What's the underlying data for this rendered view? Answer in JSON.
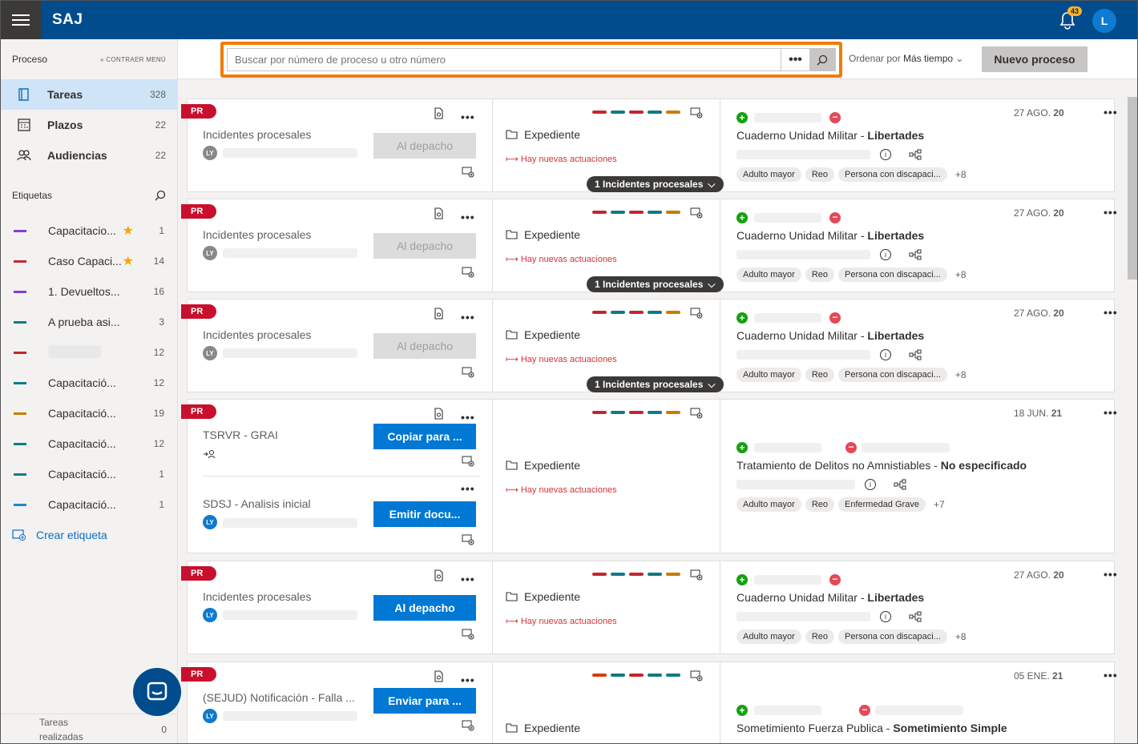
{
  "app": {
    "name": "SAJ",
    "notifications": "43",
    "user_initial": "L"
  },
  "icons": {
    "menu": "hamburger-icon",
    "bell": "bell-icon",
    "search": "search-icon",
    "star": "star-icon",
    "doc": "document-icon",
    "folder": "folder-icon",
    "add_label": "add-label-icon",
    "flow": "hierarchy-icon",
    "info": "info-icon",
    "chat": "chat-icon"
  },
  "sidebar": {
    "header": "Proceso",
    "collapse": "CONTRAER MENÚ",
    "nav": [
      {
        "label": "Tareas",
        "count": "328"
      },
      {
        "label": "Plazos",
        "count": "22"
      },
      {
        "label": "Audiencias",
        "count": "22"
      }
    ],
    "labels_title": "Etiquetas",
    "labels": [
      {
        "label": "Capacitacio...",
        "count": "1",
        "color": "#8a3bd8",
        "star": true
      },
      {
        "label": "Caso Capaci...",
        "count": "14",
        "color": "#c4262e",
        "star": true
      },
      {
        "label": "1. Devueltos...",
        "count": "16",
        "color": "#8a3bd8",
        "star": false
      },
      {
        "label": "A prueba asi...",
        "count": "3",
        "color": "#0f7b83",
        "star": false
      },
      {
        "label": "",
        "count": "12",
        "color": "#c4262e",
        "star": false
      },
      {
        "label": "Capacitació...",
        "count": "12",
        "color": "#0f7b83",
        "star": false
      },
      {
        "label": "Capacitació...",
        "count": "19",
        "color": "#c57d00",
        "star": false
      },
      {
        "label": "Capacitació...",
        "count": "12",
        "color": "#0f7b83",
        "star": false
      },
      {
        "label": "Capacitació...",
        "count": "1",
        "color": "#0f7b83",
        "star": false
      },
      {
        "label": "Capacitació...",
        "count": "1",
        "color": "#1b8ad0",
        "star": false
      }
    ],
    "create": "Crear etiqueta",
    "footer_label": "Tareas realizadas",
    "footer_count": "0"
  },
  "toolbar": {
    "search_placeholder": "Buscar por número de proceso u otro número",
    "sort_prefix": "Ordenar por",
    "sort_value": "Más tiempo",
    "new_button": "Nuevo proceso"
  },
  "cards": [
    {
      "tag": "PR",
      "title": "Incidentes procesales",
      "ly_color": "#8a8886",
      "action": "Al depacho",
      "action_enabled": false,
      "expediente": "Expediente",
      "alert": "Hay nuevas actuaciones",
      "pill": "1 Incidentes procesales",
      "date": "27 AGO.",
      "year": "20",
      "case": "Cuaderno Unidad Militar",
      "case_type": "Libertades",
      "chips": [
        "Adulto mayor",
        "Reo",
        "Persona con discapaci..."
      ],
      "more": "+8"
    },
    {
      "tag": "PR",
      "title": "Incidentes procesales",
      "ly_color": "#8a8886",
      "action": "Al depacho",
      "action_enabled": false,
      "expediente": "Expediente",
      "alert": "Hay nuevas actuaciones",
      "pill": "1 Incidentes procesales",
      "date": "27 AGO.",
      "year": "20",
      "case": "Cuaderno Unidad Militar",
      "case_type": "Libertades",
      "chips": [
        "Adulto mayor",
        "Reo",
        "Persona con discapaci..."
      ],
      "more": "+8"
    },
    {
      "tag": "PR",
      "title": "Incidentes procesales",
      "ly_color": "#8a8886",
      "action": "Al depacho",
      "action_enabled": false,
      "expediente": "Expediente",
      "alert": "Hay nuevas actuaciones",
      "pill": "1 Incidentes procesales",
      "date": "27 AGO.",
      "year": "20",
      "case": "Cuaderno Unidad Militar",
      "case_type": "Libertades",
      "chips": [
        "Adulto mayor",
        "Reo",
        "Persona con discapaci..."
      ],
      "more": "+8"
    },
    {
      "tag": "PR",
      "title": "TSRVR - GRAI",
      "title2": "SDSJ - Analisis inicial",
      "action": "Copiar para ...",
      "action2": "Emitir docu...",
      "expediente": "Expediente",
      "alert": "Hay nuevas actuaciones",
      "date": "18 JUN.",
      "year": "21",
      "case": "Tratamiento de Delitos no Amnistiables",
      "case_type": "No especificado",
      "chips": [
        "Adulto mayor",
        "Reo",
        "Enfermedad Grave"
      ],
      "more": "+7"
    },
    {
      "tag": "PR",
      "title": "Incidentes procesales",
      "ly_color": "#0e7ad1",
      "action": "Al depacho",
      "action_enabled": true,
      "expediente": "Expediente",
      "alert": "Hay nuevas actuaciones",
      "date": "27 AGO.",
      "year": "20",
      "case": "Cuaderno Unidad Militar",
      "case_type": "Libertades",
      "chips": [
        "Adulto mayor",
        "Reo",
        "Persona con discapaci..."
      ],
      "more": "+8"
    },
    {
      "tag": "PR",
      "title": "(SEJUD) Notificación - Falla ...",
      "ly_color": "#0e7ad1",
      "action": "Enviar para ...",
      "expediente": "Expediente",
      "date": "05 ENE.",
      "year": "21",
      "case": "Sometimiento Fuerza Publica",
      "case_type": "Sometimiento Simple"
    }
  ],
  "ly": "LY"
}
